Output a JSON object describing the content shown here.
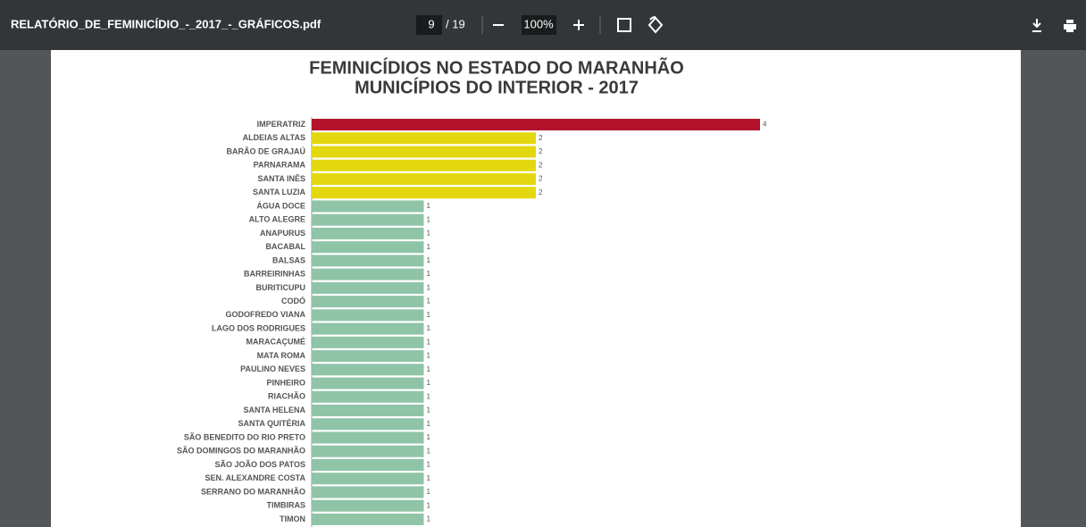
{
  "toolbar": {
    "filename": "RELATÓRIO_DE_FEMINICÍDIO_-_2017_-_GRÁFICOS.pdf",
    "page": "9",
    "total": "/ 19",
    "zoom": "100%"
  },
  "chart_data": {
    "type": "bar",
    "orientation": "horizontal",
    "title": [
      "FEMINICÍDIOS NO ESTADO DO MARANHÃO",
      "MUNICÍPIOS DO INTERIOR - 2017"
    ],
    "categories": [
      "IMPERATRIZ",
      "ALDEIAS ALTAS",
      "BARÃO DE GRAJAÚ",
      "PARNARAMA",
      "SANTA INÊS",
      "SANTA LUZIA",
      "ÁGUA DOCE",
      "ALTO ALEGRE",
      "ANAPURUS",
      "BACABAL",
      "BALSAS",
      "BARREIRINHAS",
      "BURITICUPU",
      "CODÓ",
      "GODOFREDO VIANA",
      "LAGO DOS RODRIGUES",
      "MARACAÇUMÉ",
      "MATA ROMA",
      "PAULINO NEVES",
      "PINHEIRO",
      "RIACHÃO",
      "SANTA HELENA",
      "SANTA QUITÉRIA",
      "SÃO BENEDITO DO RIO PRETO",
      "SÃO DOMINGOS DO MARANHÃO",
      "SÃO JOÃO DOS PATOS",
      "SEN. ALEXANDRE COSTA",
      "SERRANO DO MARANHÃO",
      "TIMBIRAS",
      "TIMON"
    ],
    "values": [
      4,
      2,
      2,
      2,
      2,
      2,
      1,
      1,
      1,
      1,
      1,
      1,
      1,
      1,
      1,
      1,
      1,
      1,
      1,
      1,
      1,
      1,
      1,
      1,
      1,
      1,
      1,
      1,
      1,
      1
    ],
    "colors": [
      "#b3132a",
      "#e3d80f",
      "#e3d80f",
      "#e3d80f",
      "#e3d80f",
      "#e3d80f",
      "#8fc4a6",
      "#8fc4a6",
      "#8fc4a6",
      "#8fc4a6",
      "#8fc4a6",
      "#8fc4a6",
      "#8fc4a6",
      "#8fc4a6",
      "#8fc4a6",
      "#8fc4a6",
      "#8fc4a6",
      "#8fc4a6",
      "#8fc4a6",
      "#8fc4a6",
      "#8fc4a6",
      "#8fc4a6",
      "#8fc4a6",
      "#8fc4a6",
      "#8fc4a6",
      "#8fc4a6",
      "#8fc4a6",
      "#8fc4a6",
      "#8fc4a6",
      "#8fc4a6"
    ]
  }
}
